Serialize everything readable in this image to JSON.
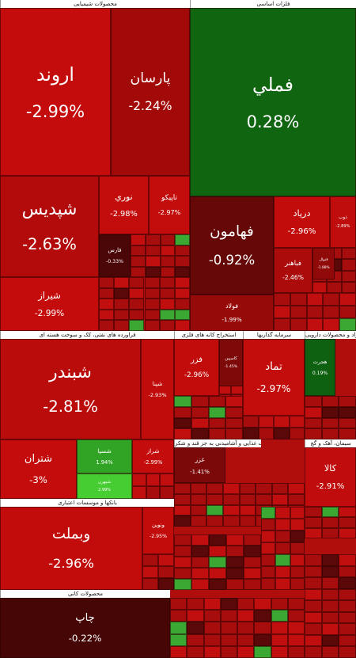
{
  "sectors": [
    {
      "title": "محصولات شیمیایی",
      "tiles": [
        {
          "name": "اروند",
          "change": -2.99,
          "change_label": "-2.99%"
        },
        {
          "name": "پارسان",
          "change": -2.24,
          "change_label": "-2.24%"
        },
        {
          "name": "شپديس",
          "change": -2.63,
          "change_label": "-2.63%"
        },
        {
          "name": "شيراز",
          "change": -2.99,
          "change_label": "-2.99%"
        },
        {
          "name": "نوري",
          "change": -2.98,
          "change_label": "-2.98%"
        },
        {
          "name": "تاپيكو",
          "change": -2.97,
          "change_label": "-2.97%"
        },
        {
          "name": "فارس",
          "change": -0.33,
          "change_label": "-0.33%"
        }
      ]
    },
    {
      "title": "فلزات اساسی",
      "tiles": [
        {
          "name": "فملي",
          "change": 0.28,
          "change_label": "0.28%"
        },
        {
          "name": "فهامون",
          "change": -0.92,
          "change_label": "-0.92%"
        },
        {
          "name": "فولاد",
          "change": -1.99,
          "change_label": "-1.99%"
        },
        {
          "name": "درياد",
          "change": -2.96,
          "change_label": "-2.96%"
        },
        {
          "name": "ذوب",
          "change": -2.89,
          "change_label": "-2.89%"
        },
        {
          "name": "فباهنر",
          "change": -2.46,
          "change_label": "-2.46%"
        },
        {
          "name": "فنوال",
          "change": -1.88,
          "change_label": "-1.88%"
        }
      ]
    },
    {
      "title": "فراورده های نفتی، کک و سوخت هسته ای",
      "tiles": [
        {
          "name": "شبندر",
          "change": -2.81,
          "change_label": "-2.81%"
        },
        {
          "name": "شپنا",
          "change": -2.93,
          "change_label": "-2.93%"
        },
        {
          "name": "شتران",
          "change": -3,
          "change_label": "-3%"
        },
        {
          "name": "شسپا",
          "change": 1.94,
          "change_label": "1.94%"
        },
        {
          "name": "شبهرن",
          "change": 2.99,
          "change_label": "2.99%"
        },
        {
          "name": "شراز",
          "change": -2.99,
          "change_label": "-2.99%"
        }
      ]
    },
    {
      "title": "بانکها و موسسات اعتباری",
      "tiles": [
        {
          "name": "وبملت",
          "change": -2.96,
          "change_label": "-2.96%"
        },
        {
          "name": "ونوين",
          "change": -2.95,
          "change_label": "-2.95%"
        }
      ]
    },
    {
      "title": "محصولات کانی",
      "tiles": [
        {
          "name": "چاپ",
          "change": -0.22,
          "change_label": "-0.22%"
        }
      ]
    },
    {
      "title": "استخراج کانه های فلزی",
      "tiles": [
        {
          "name": "فزر",
          "change": -2.96,
          "change_label": "-2.96%"
        },
        {
          "name": "کاسپین",
          "change": -1.45,
          "change_label": "-1.45%"
        }
      ]
    },
    {
      "title": "سرمایه گذاریها",
      "tiles": [
        {
          "name": "تماد",
          "change": -2.97,
          "change_label": "-2.97%"
        }
      ]
    },
    {
      "title": "مواد و محصولات دارویی",
      "tiles": [
        {
          "name": "هجرت",
          "change": 0.19,
          "change_label": "0.19%"
        }
      ]
    },
    {
      "title": "محصولات غذایی و آشامیدنی به جز قند و شکر",
      "tiles": [
        {
          "name": "غزر",
          "change": -1.41,
          "change_label": "-1.41%"
        }
      ]
    },
    {
      "title": "سیمان، آهک و گچ",
      "tiles": [
        {
          "name": "کالا",
          "change": -2.91,
          "change_label": "-2.91%"
        }
      ]
    }
  ]
}
